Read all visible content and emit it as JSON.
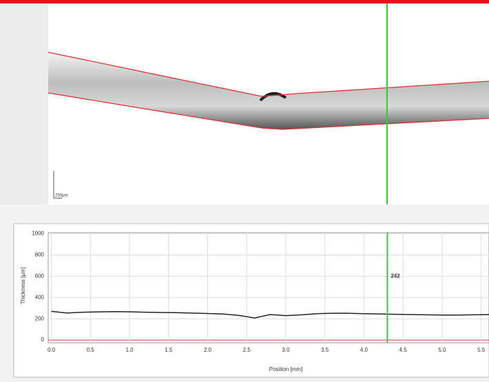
{
  "scan": {
    "scale_bar": "250µm"
  },
  "chart_data": {
    "type": "line",
    "xlabel": "Position [mm]",
    "ylabel": "Thickness [µm]",
    "x": [
      0,
      0.2,
      0.4,
      0.6,
      0.8,
      1.0,
      1.2,
      1.4,
      1.6,
      1.8,
      2.0,
      2.2,
      2.4,
      2.6,
      2.8,
      3.0,
      3.2,
      3.4,
      3.6,
      3.8,
      4.0,
      4.2,
      4.4,
      4.6,
      4.8,
      5.0,
      5.2,
      5.4,
      5.6
    ],
    "values": [
      270,
      255,
      262,
      265,
      268,
      266,
      262,
      260,
      258,
      254,
      250,
      245,
      232,
      208,
      240,
      230,
      238,
      248,
      252,
      252,
      248,
      246,
      243,
      240,
      238,
      235,
      235,
      238,
      240
    ],
    "color": "#222222",
    "xlim": [
      -0.04,
      5.6
    ],
    "ylim": [
      -25,
      1010
    ],
    "xticks": [
      {
        "value": 0,
        "label": "0.0"
      },
      0.5,
      {
        "value": 1,
        "label": "1.0"
      },
      1.5,
      {
        "value": 2,
        "label": "2.0"
      },
      2.5,
      {
        "value": 3,
        "label": "3.0"
      },
      3.5,
      {
        "value": 4,
        "label": "4.0"
      },
      4.5,
      {
        "value": 5,
        "label": "5.0"
      },
      5.5
    ],
    "yticks": [
      0,
      200,
      400,
      600,
      800,
      1000
    ],
    "grid": true,
    "annotations": [
      {
        "x": 4.3,
        "y": 600,
        "text": "242"
      }
    ]
  }
}
